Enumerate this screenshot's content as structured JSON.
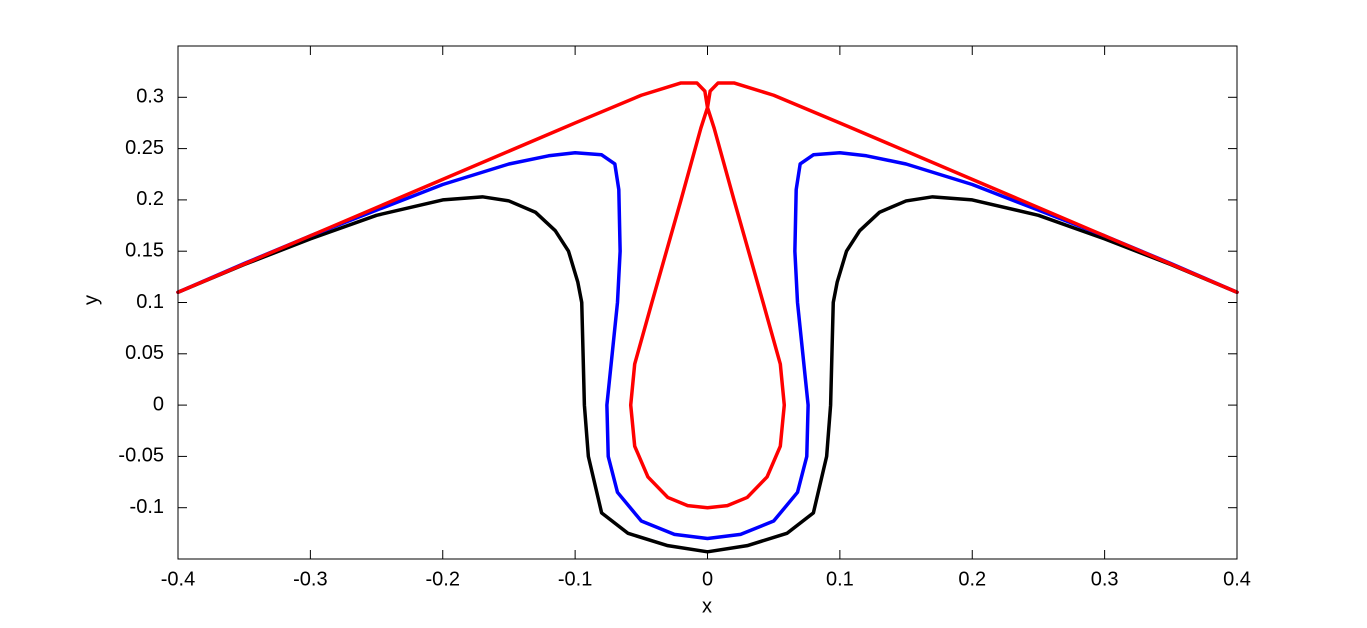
{
  "chart_data": {
    "type": "line",
    "xlabel": "x",
    "ylabel": "y",
    "xlim": [
      -0.4,
      0.4
    ],
    "ylim": [
      -0.15,
      0.35
    ],
    "xticks": [
      -0.4,
      -0.3,
      -0.2,
      -0.1,
      0,
      0.1,
      0.2,
      0.3,
      0.4
    ],
    "yticks": [
      -0.1,
      -0.05,
      0,
      0.05,
      0.1,
      0.15,
      0.2,
      0.25,
      0.3
    ],
    "grid": false,
    "series": [
      {
        "color": "#000000",
        "x": [
          -0.4,
          -0.35,
          -0.3,
          -0.25,
          -0.2,
          -0.17,
          -0.15,
          -0.13,
          -0.115,
          -0.105,
          -0.098,
          -0.095,
          -0.094,
          -0.093,
          -0.09,
          -0.08,
          -0.06,
          -0.03,
          0,
          0.03,
          0.06,
          0.08,
          0.09,
          0.093,
          0.094,
          0.095,
          0.098,
          0.105,
          0.115,
          0.13,
          0.15,
          0.17,
          0.2,
          0.25,
          0.3,
          0.35,
          0.4
        ],
        "values": [
          0.11,
          0.137,
          0.162,
          0.185,
          0.2,
          0.203,
          0.199,
          0.188,
          0.17,
          0.15,
          0.12,
          0.1,
          0.05,
          0,
          -0.05,
          -0.105,
          -0.125,
          -0.137,
          -0.143,
          -0.137,
          -0.125,
          -0.105,
          -0.05,
          0,
          0.05,
          0.1,
          0.12,
          0.15,
          0.17,
          0.188,
          0.199,
          0.203,
          0.2,
          0.185,
          0.162,
          0.137,
          0.11
        ]
      },
      {
        "color": "#0000ff",
        "x": [
          -0.4,
          -0.35,
          -0.3,
          -0.25,
          -0.2,
          -0.15,
          -0.12,
          -0.1,
          -0.08,
          -0.07,
          -0.067,
          -0.066,
          -0.068,
          -0.072,
          -0.076,
          -0.075,
          -0.068,
          -0.05,
          -0.025,
          0,
          0.025,
          0.05,
          0.068,
          0.075,
          0.076,
          0.072,
          0.068,
          0.066,
          0.067,
          0.07,
          0.08,
          0.1,
          0.12,
          0.15,
          0.2,
          0.25,
          0.3,
          0.35,
          0.4
        ],
        "values": [
          0.11,
          0.138,
          0.165,
          0.19,
          0.215,
          0.235,
          0.243,
          0.246,
          0.244,
          0.235,
          0.21,
          0.15,
          0.1,
          0.05,
          0,
          -0.05,
          -0.085,
          -0.113,
          -0.126,
          -0.13,
          -0.126,
          -0.113,
          -0.085,
          -0.05,
          0,
          0.05,
          0.1,
          0.15,
          0.21,
          0.235,
          0.244,
          0.246,
          0.243,
          0.235,
          0.215,
          0.19,
          0.165,
          0.138,
          0.11
        ]
      },
      {
        "color": "#ff0000",
        "x": [
          -0.4,
          -0.3,
          -0.2,
          -0.1,
          -0.05,
          -0.02,
          -0.008,
          -0.002,
          0,
          -0.005,
          -0.02,
          -0.042,
          -0.055,
          -0.058,
          -0.055,
          -0.045,
          -0.03,
          -0.015,
          0,
          0.015,
          0.03,
          0.045,
          0.055,
          0.058,
          0.055,
          0.042,
          0.02,
          0.005,
          0,
          0.002,
          0.008,
          0.02,
          0.05,
          0.1,
          0.2,
          0.3,
          0.4
        ],
        "values": [
          0.11,
          0.165,
          0.22,
          0.275,
          0.302,
          0.314,
          0.314,
          0.306,
          0.29,
          0.27,
          0.2,
          0.1,
          0.04,
          0,
          -0.04,
          -0.07,
          -0.09,
          -0.098,
          -0.1,
          -0.098,
          -0.09,
          -0.07,
          -0.04,
          0,
          0.04,
          0.1,
          0.2,
          0.27,
          0.29,
          0.306,
          0.314,
          0.314,
          0.302,
          0.275,
          0.22,
          0.165,
          0.11
        ]
      }
    ]
  }
}
